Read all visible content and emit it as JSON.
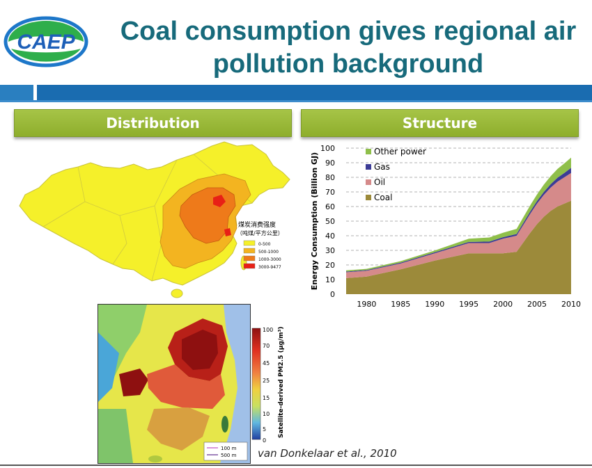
{
  "header": {
    "logo_text": "CAEP",
    "title_line1": "Coal consumption gives regional air",
    "title_line2": "pollution background"
  },
  "sections": {
    "distribution_label": "Distribution",
    "structure_label": "Structure"
  },
  "map_legend": {
    "title_line1": "煤炭消费强度",
    "title_line2": "（吨煤/平方公里）",
    "items": [
      {
        "label": "0-500",
        "color": "#f5f02a"
      },
      {
        "label": "500-1000",
        "color": "#f3b420"
      },
      {
        "label": "1000-3000",
        "color": "#ee7a1a"
      },
      {
        "label": "3000-9477",
        "color": "#e82016"
      }
    ]
  },
  "satellite": {
    "colorbar_ticks": [
      "100",
      "70",
      "45",
      "25",
      "15",
      "10",
      "5",
      "0"
    ],
    "colorbar_label": "Satellite-derived PM2.5 (μg/m³)",
    "scale_100": "100 m",
    "scale_500": "500 m"
  },
  "citation": "van Donkelaar et al., 2010",
  "chart_data": {
    "type": "area",
    "ylabel": "Energy Consumption (Billion GJ)",
    "xlabel": "",
    "ylim": [
      0,
      100
    ],
    "xlim": [
      1977,
      2010
    ],
    "yticks": [
      0,
      10,
      20,
      30,
      40,
      50,
      60,
      70,
      80,
      90,
      100
    ],
    "xticks": [
      1980,
      1985,
      1990,
      1995,
      2000,
      2005,
      2010
    ],
    "grid": true,
    "legend": "top-left",
    "x": [
      1977,
      1980,
      1985,
      1990,
      1995,
      1998,
      2000,
      2002,
      2004,
      2005,
      2006,
      2007,
      2008,
      2009,
      2010
    ],
    "series": [
      {
        "name": "Coal",
        "color": "#9c8a3a",
        "values": [
          11,
          12,
          17,
          23,
          28,
          28,
          28,
          29,
          42,
          48,
          53,
          57,
          60,
          62,
          64
        ]
      },
      {
        "name": "Oil",
        "color": "#d58a8a",
        "values": [
          4,
          4,
          4,
          5,
          7,
          7,
          10,
          11,
          13,
          14,
          15,
          16,
          17,
          18,
          19
        ]
      },
      {
        "name": "Gas",
        "color": "#3c3c96",
        "values": [
          0.5,
          0.5,
          0.6,
          0.7,
          0.8,
          1,
          1,
          1.2,
          1.6,
          1.8,
          2,
          2.3,
          2.7,
          3,
          3.5
        ]
      },
      {
        "name": "Other power",
        "color": "#8fbf4a",
        "values": [
          0.8,
          0.8,
          1,
          1.2,
          2.2,
          2.8,
          3,
          3.5,
          4.2,
          4.5,
          5,
          5.5,
          6,
          6.5,
          7
        ]
      }
    ]
  }
}
